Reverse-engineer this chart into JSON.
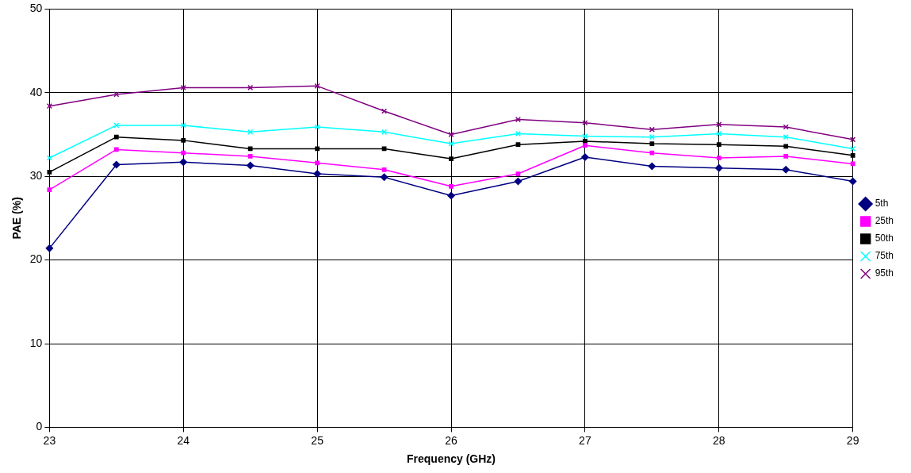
{
  "chart_data": {
    "type": "line",
    "xlabel": "Frequency (GHz)",
    "ylabel": "PAE (%)",
    "x": [
      23,
      23.5,
      24,
      24.5,
      25,
      25.5,
      26,
      26.5,
      27,
      27.5,
      28,
      28.5,
      29
    ],
    "xlim": [
      23,
      29
    ],
    "xticks": [
      23,
      24,
      25,
      26,
      27,
      28,
      29
    ],
    "ylim": [
      0,
      50
    ],
    "yticks": [
      0,
      10,
      20,
      30,
      40,
      50
    ],
    "grid": true,
    "legend": "right",
    "series": [
      {
        "name": "5th",
        "color": "#000080",
        "marker": "diamond",
        "values": [
          21.4,
          31.4,
          31.7,
          31.3,
          30.3,
          29.9,
          27.7,
          29.4,
          32.3,
          31.2,
          31.0,
          30.8,
          29.4
        ]
      },
      {
        "name": "25th",
        "color": "#ff00ff",
        "marker": "square",
        "values": [
          28.4,
          33.2,
          32.8,
          32.4,
          31.6,
          30.8,
          28.8,
          30.3,
          33.7,
          32.8,
          32.2,
          32.4,
          31.5
        ]
      },
      {
        "name": "50th",
        "color": "#000000",
        "marker": "square",
        "values": [
          30.5,
          34.7,
          34.3,
          33.3,
          33.3,
          33.3,
          32.1,
          33.8,
          34.2,
          33.9,
          33.8,
          33.6,
          32.5
        ]
      },
      {
        "name": "75th",
        "color": "#00ffff",
        "marker": "cross",
        "values": [
          32.2,
          36.1,
          36.1,
          35.3,
          35.9,
          35.3,
          33.9,
          35.1,
          34.8,
          34.7,
          35.1,
          34.7,
          33.3
        ]
      },
      {
        "name": "95th",
        "color": "#800080",
        "marker": "cross",
        "values": [
          38.4,
          39.8,
          40.6,
          40.6,
          40.8,
          37.8,
          35.0,
          36.8,
          36.4,
          35.6,
          36.2,
          35.9,
          34.4
        ]
      }
    ]
  }
}
